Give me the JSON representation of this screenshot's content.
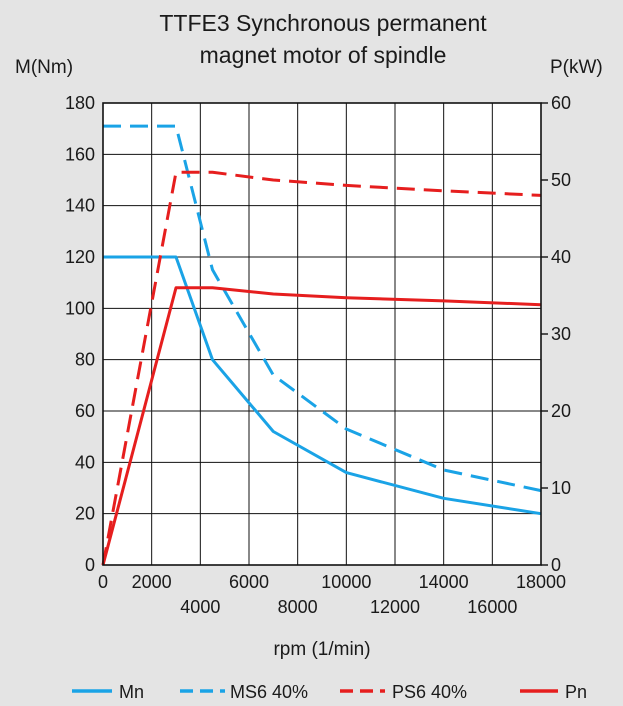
{
  "chart_data": {
    "type": "line",
    "title_lines": [
      "TTFE3 Synchronous permanent",
      "magnet motor of spindle"
    ],
    "xlabel": "rpm (1/min)",
    "ylabel_left": "M(Nm)",
    "ylabel_right": "P(kW)",
    "xlim": [
      0,
      18000
    ],
    "ylim_left": [
      0,
      180
    ],
    "ylim_right": [
      0,
      60
    ],
    "grid": true,
    "x_ticks_upper": [
      "0",
      "2000",
      "6000",
      "10000",
      "14000",
      "18000"
    ],
    "x_ticks_upper_values": [
      0,
      2000,
      6000,
      10000,
      14000,
      18000
    ],
    "x_ticks_lower": [
      "4000",
      "8000",
      "12000",
      "16000"
    ],
    "x_ticks_lower_values": [
      4000,
      8000,
      12000,
      16000
    ],
    "y_ticks_left": [
      "0",
      "20",
      "40",
      "60",
      "80",
      "100",
      "120",
      "140",
      "160",
      "180"
    ],
    "y_ticks_left_values": [
      0,
      20,
      40,
      60,
      80,
      100,
      120,
      140,
      160,
      180
    ],
    "y_ticks_right": [
      "0",
      "10",
      "20",
      "30",
      "40",
      "50",
      "60"
    ],
    "y_ticks_right_values": [
      0,
      10,
      20,
      30,
      40,
      50,
      60
    ],
    "legend_position": "bottom",
    "series": [
      {
        "name": "Mn",
        "axis": "left",
        "color": "#1aa3e6",
        "style": "solid",
        "x": [
          0,
          3000,
          4500,
          7000,
          10000,
          14000,
          18000
        ],
        "y": [
          120,
          120,
          80,
          52,
          36,
          26,
          20
        ]
      },
      {
        "name": "MS6 40%",
        "axis": "left",
        "color": "#1aa3e6",
        "style": "dashed",
        "x": [
          0,
          3000,
          4500,
          7000,
          10000,
          14000,
          18000
        ],
        "y": [
          171,
          171,
          115,
          74,
          53,
          37,
          29
        ]
      },
      {
        "name": "PS6 40%",
        "axis": "right",
        "color": "#e61e1e",
        "style": "dashed",
        "x": [
          0,
          3000,
          4500,
          7000,
          10000,
          14000,
          18000
        ],
        "y": [
          0,
          51,
          51,
          50,
          49.3,
          48.6,
          48
        ]
      },
      {
        "name": "Pn",
        "axis": "right",
        "color": "#e61e1e",
        "style": "solid",
        "x": [
          0,
          3000,
          4500,
          7000,
          10000,
          14000,
          18000
        ],
        "y": [
          0,
          36,
          36,
          35.2,
          34.7,
          34.3,
          33.8
        ]
      }
    ]
  }
}
